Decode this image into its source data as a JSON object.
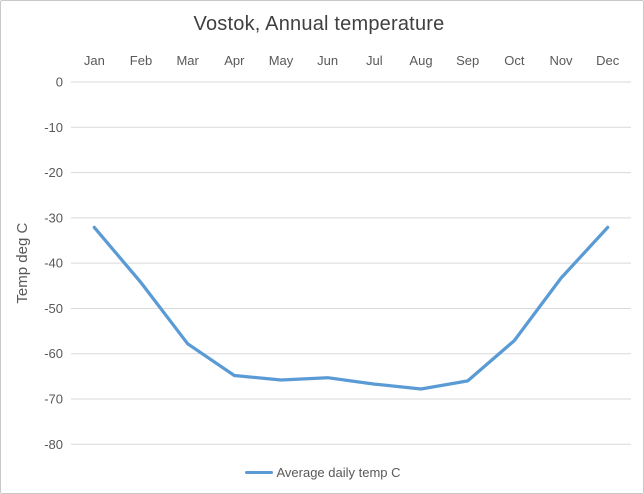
{
  "chart_data": {
    "type": "line",
    "title": "Vostok, Annual temperature",
    "ylabel": "Temp deg C",
    "xlabel": "",
    "categories": [
      "Jan",
      "Feb",
      "Mar",
      "Apr",
      "May",
      "Jun",
      "Jul",
      "Aug",
      "Sep",
      "Oct",
      "Nov",
      "Dec"
    ],
    "series": [
      {
        "name": "Average daily temp C",
        "color": "#5B9BD5",
        "values": [
          -32.1,
          -44.3,
          -57.8,
          -64.8,
          -65.8,
          -65.3,
          -66.7,
          -67.8,
          -66.0,
          -57.1,
          -43.3,
          -32.1
        ]
      }
    ],
    "ylim": [
      -80,
      0
    ],
    "yticks": [
      0,
      -10,
      -20,
      -30,
      -40,
      -50,
      -60,
      -70,
      -80
    ],
    "grid": "horizontal",
    "legend_position": "bottom",
    "colors": {
      "grid": "#D9D9D9",
      "tick_label": "#595959",
      "axis_title": "#595959",
      "title": "#404040",
      "background": "#FFFFFF",
      "border": "#C9C9C9"
    }
  }
}
